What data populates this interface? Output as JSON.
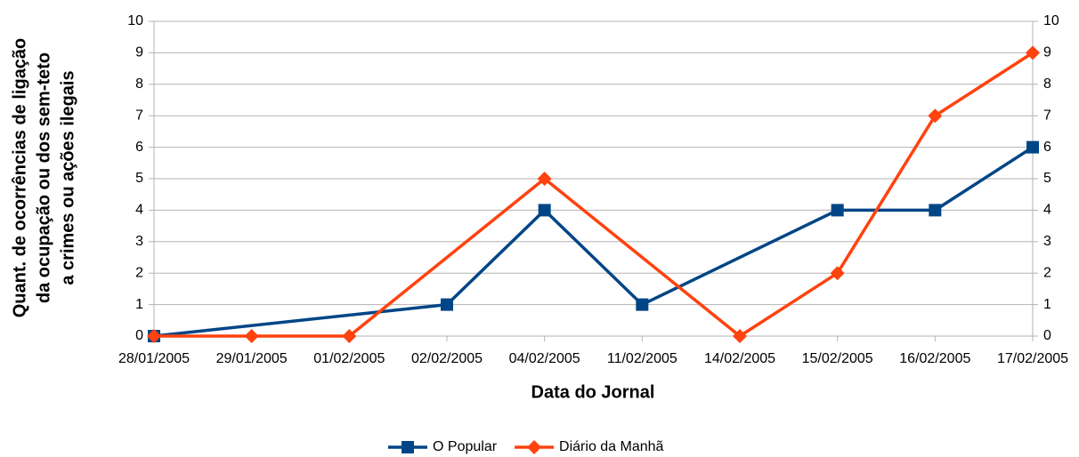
{
  "chart_data": {
    "type": "line",
    "x_label": "Data do Jornal",
    "y_label": [
      "Quant. de ocorrências de ligação",
      "da ocupação ou dos sem-teto",
      "a crimes ou ações ilegais"
    ],
    "categories": [
      "28/01/2005",
      "29/01/2005",
      "01/02/2005",
      "02/02/2005",
      "04/02/2005",
      "11/02/2005",
      "14/02/2005",
      "15/02/2005",
      "16/02/2005",
      "17/02/2005"
    ],
    "series": [
      {
        "name": "O Popular",
        "color": "#004586",
        "marker": "square",
        "values": [
          0,
          null,
          null,
          1,
          4,
          1,
          null,
          4,
          4,
          6
        ]
      },
      {
        "name": "Diário da Manhã",
        "color": "#ff420e",
        "marker": "diamond",
        "values": [
          0,
          0,
          0,
          null,
          5,
          null,
          0,
          2,
          7,
          9
        ]
      }
    ],
    "connect_gaps": true,
    "ylim": [
      0,
      10
    ],
    "yticks": [
      0,
      1,
      2,
      3,
      4,
      5,
      6,
      7,
      8,
      9,
      10
    ],
    "y2lim": [
      0,
      10
    ],
    "y2ticks": [
      0,
      1,
      2,
      3,
      4,
      5,
      6,
      7,
      8,
      9,
      10
    ],
    "grid": true,
    "legend": "bottom"
  }
}
